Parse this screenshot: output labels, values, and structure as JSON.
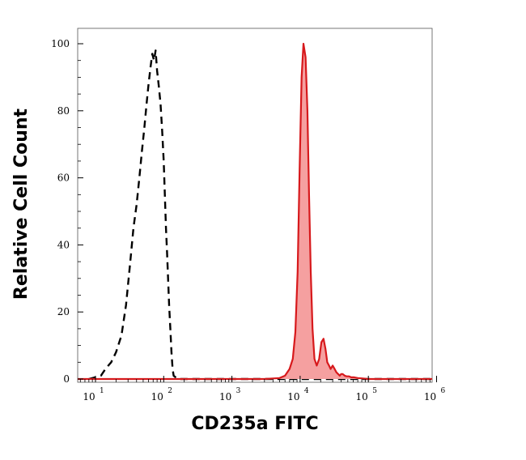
{
  "chart_data": {
    "type": "area",
    "title": "",
    "xlabel": "CD235a FITC",
    "ylabel": "Relative Cell Count",
    "xscale": "log",
    "xlim": [
      5,
      1000000
    ],
    "ylim": [
      0,
      104
    ],
    "grid": false,
    "legend": "none",
    "x_ticks": [
      {
        "value": 10,
        "base": "10",
        "exp": "1"
      },
      {
        "value": 100,
        "base": "10",
        "exp": "2"
      },
      {
        "value": 1000,
        "base": "10",
        "exp": "3"
      },
      {
        "value": 10000,
        "base": "10",
        "exp": "4"
      },
      {
        "value": 100000,
        "base": "10",
        "exp": "5"
      },
      {
        "value": 1000000,
        "base": "10",
        "exp": "6"
      }
    ],
    "y_ticks": [
      {
        "value": 0,
        "label": "0"
      },
      {
        "value": 20,
        "label": "20"
      },
      {
        "value": 40,
        "label": "40"
      },
      {
        "value": 60,
        "label": "60"
      },
      {
        "value": 80,
        "label": "80"
      },
      {
        "value": 100,
        "label": "100"
      }
    ],
    "series": [
      {
        "style": "dashed",
        "color": "#000000",
        "filled": false,
        "x": [
          8,
          12,
          14,
          17,
          20,
          24,
          28,
          32,
          36,
          40,
          44,
          48,
          52,
          56,
          60,
          64,
          68,
          72,
          76,
          80,
          85,
          90,
          95,
          100,
          104,
          108,
          112,
          116,
          120,
          125,
          130,
          135,
          140,
          160,
          300,
          1000,
          3000,
          10000,
          100000,
          1000000
        ],
        "y": [
          0,
          1,
          3,
          5,
          8,
          13,
          22,
          34,
          45,
          52,
          60,
          68,
          75,
          82,
          88,
          93,
          97,
          95,
          98,
          92,
          87,
          82,
          74,
          65,
          55,
          45,
          38,
          30,
          22,
          15,
          8,
          3,
          1,
          0,
          0,
          0,
          0,
          0,
          0,
          0
        ]
      },
      {
        "style": "solid",
        "color": "#d7191c",
        "fill": "#f5a0a0",
        "filled": true,
        "x": [
          5,
          1000,
          3000,
          5000,
          6000,
          7000,
          7800,
          8500,
          9200,
          9800,
          10500,
          11200,
          12000,
          12800,
          13500,
          14300,
          15200,
          16200,
          17500,
          19000,
          20500,
          22000,
          23500,
          25000,
          26500,
          28000,
          30000,
          32000,
          34000,
          36000,
          38000,
          40000,
          42000,
          45000,
          48000,
          52000,
          56000,
          62000,
          70000,
          80000,
          100000,
          1000000
        ],
        "y": [
          0,
          0,
          0,
          0.3,
          1,
          3,
          6,
          14,
          32,
          62,
          90,
          100,
          96,
          80,
          55,
          32,
          15,
          6,
          4,
          6,
          11,
          12,
          9,
          5,
          4,
          3,
          4,
          3,
          2,
          1.5,
          1,
          1.5,
          1.5,
          1,
          0.8,
          0.8,
          0.5,
          0.5,
          0.3,
          0.2,
          0,
          0
        ]
      }
    ]
  }
}
